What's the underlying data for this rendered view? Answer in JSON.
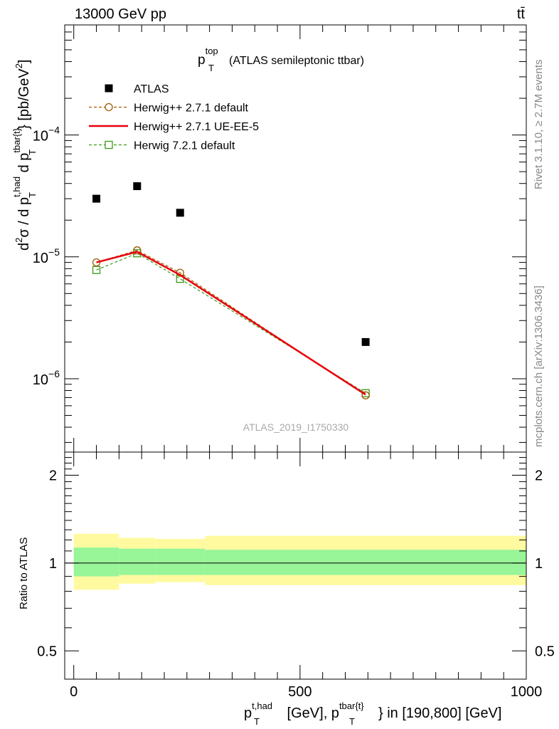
{
  "header": {
    "energy_label": "13000 GeV pp",
    "process_label": "tt̄"
  },
  "side_labels": {
    "rivet": "Rivet 3.1.10, ≥ 2.7M events",
    "mcplots": "mcplots.cern.ch [arXiv:1306.3436]"
  },
  "chart_data": [
    {
      "type": "scatter",
      "panel": "main",
      "title_main": "p",
      "title_sup": "top",
      "title_sub": "T",
      "title_suffix": "(ATLAS semileptonic ttbar)",
      "watermark": "ATLAS_2019_I1750330",
      "yscale": "log",
      "ylim": [
        2.5e-07,
        0.0008
      ],
      "xlim": [
        -20,
        1000
      ],
      "ylabel_parts": {
        "d": "d",
        "two": "2",
        "sigma": "σ",
        "slash": " / ",
        "d2": "d p",
        "thad_sup": "t,had",
        "T_sub": "T",
        "d3": " d p",
        "tbar_sup": "tbar{t}",
        "T_sub2": "T",
        "units": "} [pb/GeV",
        "units_sup": "2",
        "units_close": "]"
      },
      "y_ticks": [
        {
          "value": 1e-06,
          "mantissa": "10",
          "exp": "−6"
        },
        {
          "value": 1e-05,
          "mantissa": "10",
          "exp": "−5"
        },
        {
          "value": 0.0001,
          "mantissa": "10",
          "exp": "−4"
        }
      ],
      "legend_position": "top-left",
      "series": [
        {
          "name": "ATLAS",
          "color": "#000000",
          "marker": "square-filled",
          "line": "none",
          "x": [
            50,
            140,
            235,
            645
          ],
          "y": [
            3e-05,
            3.8e-05,
            2.3e-05,
            2e-06
          ]
        },
        {
          "name": "Herwig++ 2.7.1 default",
          "color": "#a05a00",
          "marker": "circle-open",
          "line": "dashed",
          "x": [
            50,
            140,
            235,
            645
          ],
          "y": [
            9e-06,
            1.13e-05,
            7.4e-06,
            7.3e-07
          ]
        },
        {
          "name": "Herwig++ 2.7.1 UE-EE-5",
          "color": "#e8000b",
          "marker": "none",
          "line": "solid",
          "x": [
            50,
            140,
            235,
            645
          ],
          "y": [
            9e-06,
            1.1e-05,
            7.1e-06,
            7.4e-07
          ]
        },
        {
          "name": "Herwig 7.2.1 default",
          "color": "#3a9a16",
          "marker": "square-open",
          "line": "dashed",
          "x": [
            50,
            140,
            235,
            645
          ],
          "y": [
            7.8e-06,
            1.07e-05,
            6.6e-06,
            7.6e-07
          ]
        }
      ]
    },
    {
      "type": "area",
      "panel": "ratio",
      "ylabel": "Ratio to ATLAS",
      "yscale": "log",
      "ylim": [
        0.4,
        2.4
      ],
      "xlim": [
        -20,
        1000
      ],
      "y_ticks": [
        {
          "value": 0.5,
          "label": "0.5"
        },
        {
          "value": 1,
          "label": "1"
        },
        {
          "value": 2,
          "label": "2"
        }
      ],
      "x_ticks": [
        {
          "value": 0,
          "label": "0"
        },
        {
          "value": 500,
          "label": "500"
        },
        {
          "value": 1000,
          "label": "1000"
        }
      ],
      "xlabel_parts": {
        "p": "p",
        "thad_sup": "t,had",
        "T_sub": "T",
        "mid": " [GeV], p",
        "tbar_sup": "tbar{t}",
        "T_sub2": "T",
        "end": "} in [190,800] [GeV]"
      },
      "reference_line": 1,
      "bins": [
        {
          "x0": 0,
          "x1": 100,
          "green": [
            0.9,
            1.13
          ],
          "yellow": [
            0.81,
            1.26
          ]
        },
        {
          "x0": 100,
          "x1": 180,
          "green": [
            0.91,
            1.12
          ],
          "yellow": [
            0.85,
            1.22
          ]
        },
        {
          "x0": 180,
          "x1": 290,
          "green": [
            0.91,
            1.12
          ],
          "yellow": [
            0.86,
            1.21
          ]
        },
        {
          "x0": 290,
          "x1": 1000,
          "green": [
            0.91,
            1.11
          ],
          "yellow": [
            0.84,
            1.24
          ]
        }
      ],
      "colors": {
        "green": "#98f598",
        "yellow": "#fffaa0"
      }
    }
  ]
}
